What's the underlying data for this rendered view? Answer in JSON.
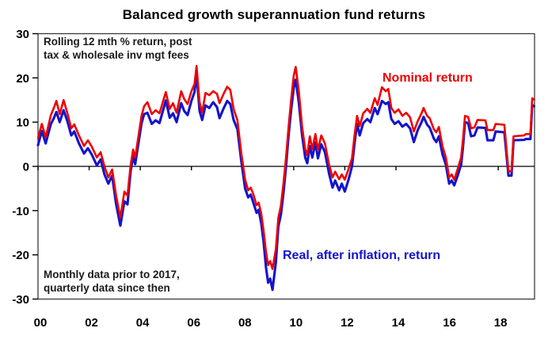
{
  "chart": {
    "title": "Balanced growth superannuation fund returns",
    "annotation_top": {
      "line1": "Rolling 12 mth %  return, post",
      "line2": "tax & wholesale inv mgt fees"
    },
    "annotation_bottom": {
      "line1": "Monthly data prior to 2017,",
      "line2": "quarterly data since then"
    },
    "labels": {
      "nominal": "Nominal return",
      "real": "Real, after inflation, return"
    }
  },
  "chart_data": {
    "type": "line",
    "title": "Balanced growth superannuation fund returns",
    "xlabel": "",
    "ylabel": "Rolling 12 mth % return",
    "legend": "inline-text-labels",
    "grid": false,
    "frame_color": "#3a3a3a",
    "axis_color": "#000000",
    "x_axis": {
      "range": [
        2000,
        2019.42
      ],
      "tick_years": [
        2000,
        2002,
        2004,
        2006,
        2008,
        2010,
        2012,
        2014,
        2016,
        2018
      ],
      "tick_labels": [
        "00",
        "02",
        "04",
        "06",
        "08",
        "10",
        "12",
        "14",
        "16",
        "18"
      ]
    },
    "y_axis": {
      "range": [
        -30,
        30
      ],
      "ticks": [
        30,
        20,
        10,
        0,
        -10,
        -20,
        -30
      ]
    },
    "x": [
      2000,
      2000.15,
      2000.3,
      2000.5,
      2000.62,
      2000.72,
      2000.85,
      2001,
      2001.15,
      2001.3,
      2001.42,
      2001.6,
      2001.8,
      2001.95,
      2002.1,
      2002.3,
      2002.45,
      2002.6,
      2002.75,
      2002.9,
      2003.05,
      2003.22,
      2003.38,
      2003.5,
      2003.62,
      2003.72,
      2003.8,
      2004.05,
      2004.15,
      2004.28,
      2004.45,
      2004.6,
      2004.75,
      2005,
      2005.15,
      2005.28,
      2005.42,
      2005.6,
      2005.72,
      2005.85,
      2006,
      2006.12,
      2006.2,
      2006.32,
      2006.42,
      2006.55,
      2006.7,
      2006.85,
      2007,
      2007.1,
      2007.25,
      2007.4,
      2007.52,
      2007.65,
      2007.8,
      2007.95,
      2008.1,
      2008.22,
      2008.32,
      2008.42,
      2008.55,
      2008.63,
      2008.73,
      2008.82,
      2008.92,
      2009,
      2009.08,
      2009.17,
      2009.3,
      2009.4,
      2009.5,
      2009.6,
      2009.7,
      2009.8,
      2009.9,
      2010,
      2010.08,
      2010.2,
      2010.33,
      2010.45,
      2010.53,
      2010.63,
      2010.73,
      2010.85,
      2010.95,
      2011.08,
      2011.22,
      2011.38,
      2011.52,
      2011.62,
      2011.78,
      2011.88,
      2012,
      2012.15,
      2012.28,
      2012.38,
      2012.48,
      2012.58,
      2012.72,
      2012.88,
      2013,
      2013.17,
      2013.28,
      2013.45,
      2013.6,
      2013.7,
      2013.82,
      2013.95,
      2014.1,
      2014.25,
      2014.4,
      2014.55,
      2014.7,
      2014.85,
      2015,
      2015.08,
      2015.22,
      2015.32,
      2015.48,
      2015.58,
      2015.68,
      2015.82,
      2015.95,
      2016.08,
      2016.18,
      2016.28,
      2016.42,
      2016.55,
      2016.62,
      2016.7,
      2016.82,
      2016.94,
      2017.07,
      2017.19,
      2017.5,
      2017.58,
      2017.81,
      2017.9,
      2018.24,
      2018.4,
      2018.52,
      2018.6,
      2019.02,
      2019.08,
      2019.26,
      2019.33,
      2019.4
    ],
    "series": [
      {
        "name": "Nominal return",
        "color": "#ee0000",
        "values": [
          6.4,
          9.6,
          6.6,
          11.5,
          13.2,
          14.8,
          11.8,
          15,
          12,
          8.6,
          9.5,
          7,
          4.6,
          5.9,
          4.5,
          2,
          3.2,
          0,
          -2.5,
          -0.7,
          -6.5,
          -11.6,
          -5.7,
          -6.6,
          0.2,
          3.8,
          2,
          11.5,
          13.6,
          14.5,
          11.8,
          12.7,
          12,
          16.8,
          13,
          14.3,
          12.1,
          17,
          15.2,
          14.1,
          17,
          18.6,
          22.7,
          14.5,
          12.1,
          16.6,
          16.1,
          17,
          16.4,
          14.3,
          16.3,
          18,
          17.3,
          13,
          10.4,
          3,
          -3,
          -5.4,
          -4.8,
          -6.3,
          -8.8,
          -8.2,
          -10.7,
          -14.5,
          -19.5,
          -22.3,
          -21.4,
          -23.2,
          -18.8,
          -11.6,
          -8.9,
          -4,
          2,
          8.9,
          15,
          20.5,
          22.5,
          17,
          8.9,
          3.9,
          2.5,
          6.8,
          3.9,
          7.3,
          3.8,
          7,
          5.2,
          0.5,
          -2.5,
          -1.2,
          -2.9,
          -1.8,
          -3,
          -0.5,
          1.8,
          7,
          11.4,
          9.1,
          12,
          13,
          12.1,
          15.4,
          13.9,
          17.9,
          17,
          17.5,
          13.2,
          12.1,
          12.9,
          11.4,
          12.1,
          11.1,
          7.9,
          10.2,
          12,
          13.2,
          11.4,
          10.9,
          8.4,
          7.7,
          8.9,
          4.5,
          2,
          -2.5,
          -1.8,
          -3,
          -0.5,
          2,
          6,
          11.4,
          11.2,
          8.6,
          8.8,
          10.5,
          10.4,
          8.2,
          8.2,
          9.6,
          9.4,
          -1.1,
          -1.1,
          6.8,
          7,
          7.3,
          7.3,
          15.4,
          15.1
        ]
      },
      {
        "name": "Real, after inflation, return",
        "color": "#1414cc",
        "values": [
          4.8,
          8,
          5.2,
          9.5,
          10.9,
          12.3,
          10,
          12.7,
          10.2,
          7,
          7.9,
          5.2,
          2.9,
          4.1,
          2.7,
          0.2,
          1.6,
          -1.8,
          -3.9,
          -2.1,
          -8.4,
          -13.4,
          -7.9,
          -8.6,
          -1.2,
          2.3,
          0.5,
          9.8,
          11.8,
          12.1,
          9.6,
          10.4,
          9.8,
          14.9,
          11,
          12,
          10,
          14.3,
          12.5,
          11.6,
          14.8,
          16.8,
          21,
          12.5,
          10.5,
          13.8,
          13.2,
          14.5,
          13.4,
          10.9,
          13,
          14.8,
          14.1,
          10.5,
          8.4,
          1.2,
          -5,
          -7,
          -6.4,
          -8.2,
          -10.5,
          -9.8,
          -12.9,
          -17,
          -23,
          -26.3,
          -25.4,
          -27.9,
          -21.8,
          -13.6,
          -10.9,
          -6.1,
          0,
          7,
          12.7,
          17.7,
          19.6,
          14.5,
          7,
          2,
          0.7,
          4.6,
          2,
          5.4,
          1.8,
          5,
          3.2,
          -1.5,
          -4.8,
          -3.2,
          -5.4,
          -3.9,
          -5.7,
          -2.9,
          0,
          5.2,
          9.6,
          7,
          9.8,
          10.7,
          10,
          13.2,
          11.8,
          14.8,
          14.1,
          14.5,
          10.7,
          9.6,
          10.2,
          9,
          9.6,
          8.6,
          5.5,
          8.2,
          10,
          11.2,
          9.4,
          8.8,
          6.3,
          5.5,
          6.8,
          2.7,
          0.4,
          -3.9,
          -3.2,
          -4.3,
          -2,
          0.4,
          4.3,
          10,
          9.8,
          6.8,
          7,
          8.8,
          8.7,
          5.9,
          5.9,
          7.9,
          7.7,
          -2.1,
          -2.1,
          5.9,
          6,
          6.2,
          6.2,
          13.9,
          13.6
        ]
      }
    ]
  }
}
